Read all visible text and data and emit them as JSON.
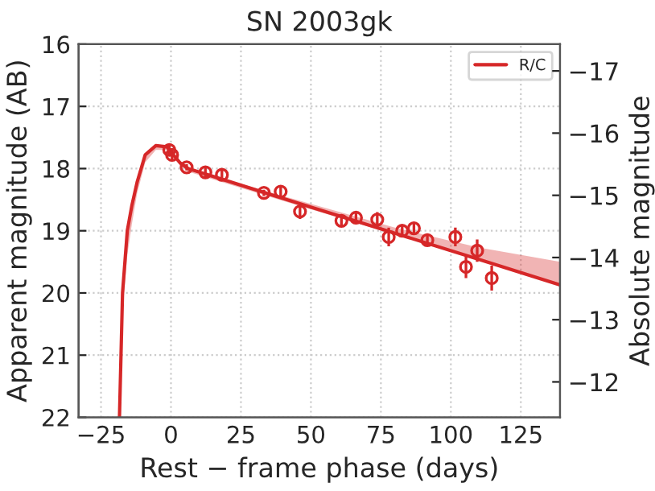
{
  "chart_data": {
    "type": "line",
    "title": "SN 2003gk",
    "xlabel": "Rest − frame phase (days)",
    "ylabel": "Apparent magnitude (AB)",
    "y2label": "Absolute magnitude",
    "xlim": [
      -33,
      139
    ],
    "xticks": [
      {
        "value": -25,
        "label": "−25"
      },
      0,
      25,
      50,
      75,
      100,
      125
    ],
    "ylim": [
      22,
      16
    ],
    "yticks": [
      16,
      17,
      18,
      19,
      20,
      21,
      22
    ],
    "y2lim": [
      -11.43,
      -17.43
    ],
    "y2ticks": [
      {
        "value": -17,
        "label": "−17"
      },
      {
        "value": -16,
        "label": "−16"
      },
      {
        "value": -15,
        "label": "−15"
      },
      {
        "value": -14,
        "label": "−14"
      },
      {
        "value": -13,
        "label": "−13"
      },
      {
        "value": -12,
        "label": "−12"
      }
    ],
    "grid": true,
    "legend": "top right",
    "series": [
      {
        "name": "R/C",
        "color": "#d62728",
        "x": [
          -18.4,
          -17.3,
          -15.6,
          -14,
          -12.1,
          -9.2,
          -5.4,
          -1.5,
          3.3,
          6.2,
          40,
          80,
          110,
          139
        ],
        "values": [
          22,
          20,
          19,
          18.6,
          18.22,
          17.78,
          17.63,
          17.65,
          17.91,
          18.0,
          18.48,
          19.04,
          19.46,
          19.87
        ],
        "lower": [
          22,
          20.3,
          19.4,
          18.9,
          18.4,
          17.9,
          17.7,
          17.7,
          17.95,
          18.05,
          18.52,
          19.06,
          19.47,
          19.88
        ],
        "upper": [
          22,
          20,
          19,
          18.6,
          18.22,
          17.78,
          17.63,
          17.65,
          17.91,
          18.0,
          18.44,
          18.95,
          19.27,
          19.5
        ]
      },
      {
        "type": "scatter",
        "color": "#d62728",
        "marker": "circle",
        "x": [
          -0.6,
          0.4,
          5.6,
          12.3,
          18.2,
          33.2,
          39.2,
          46.1,
          60.9,
          66.1,
          73.7,
          77.8,
          82.6,
          86.8,
          91.6,
          101.6,
          105.4,
          109.4,
          114.6
        ],
        "values": [
          17.7,
          17.78,
          17.98,
          18.06,
          18.1,
          18.39,
          18.37,
          18.69,
          18.84,
          18.79,
          18.82,
          19.1,
          19.0,
          18.96,
          19.15,
          19.1,
          19.58,
          19.32,
          19.76
        ],
        "errors": [
          0.08,
          0.08,
          0.05,
          0.1,
          0.1,
          0.05,
          0.08,
          0.12,
          0.1,
          0.1,
          0.12,
          0.15,
          0.1,
          0.1,
          0.1,
          0.15,
          0.18,
          0.18,
          0.2
        ]
      }
    ]
  }
}
